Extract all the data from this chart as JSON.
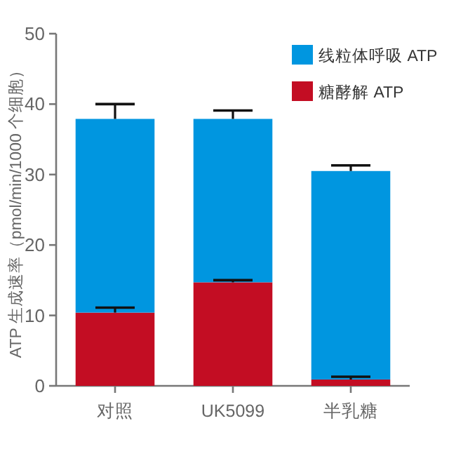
{
  "chart_data": {
    "type": "bar",
    "stacked": true,
    "ylabel": "ATP 生成速率（pmol/min/1000 个细胞）",
    "categories": [
      "对照",
      "UK5099",
      "半乳糖"
    ],
    "series": [
      {
        "name": "糖酵解 ATP",
        "color": "#c30d23",
        "values": [
          10.4,
          14.7,
          0.9
        ],
        "errors": [
          0.7,
          0.3,
          0.4
        ]
      },
      {
        "name": "线粒体呼吸 ATP",
        "color": "#0096e0",
        "values": [
          27.5,
          23.2,
          29.6
        ],
        "errors": [
          2.1,
          1.2,
          0.8
        ]
      }
    ],
    "ylim": [
      0,
      50
    ],
    "yticks": [
      0,
      10,
      20,
      30,
      40,
      50
    ],
    "legend": "top right"
  }
}
